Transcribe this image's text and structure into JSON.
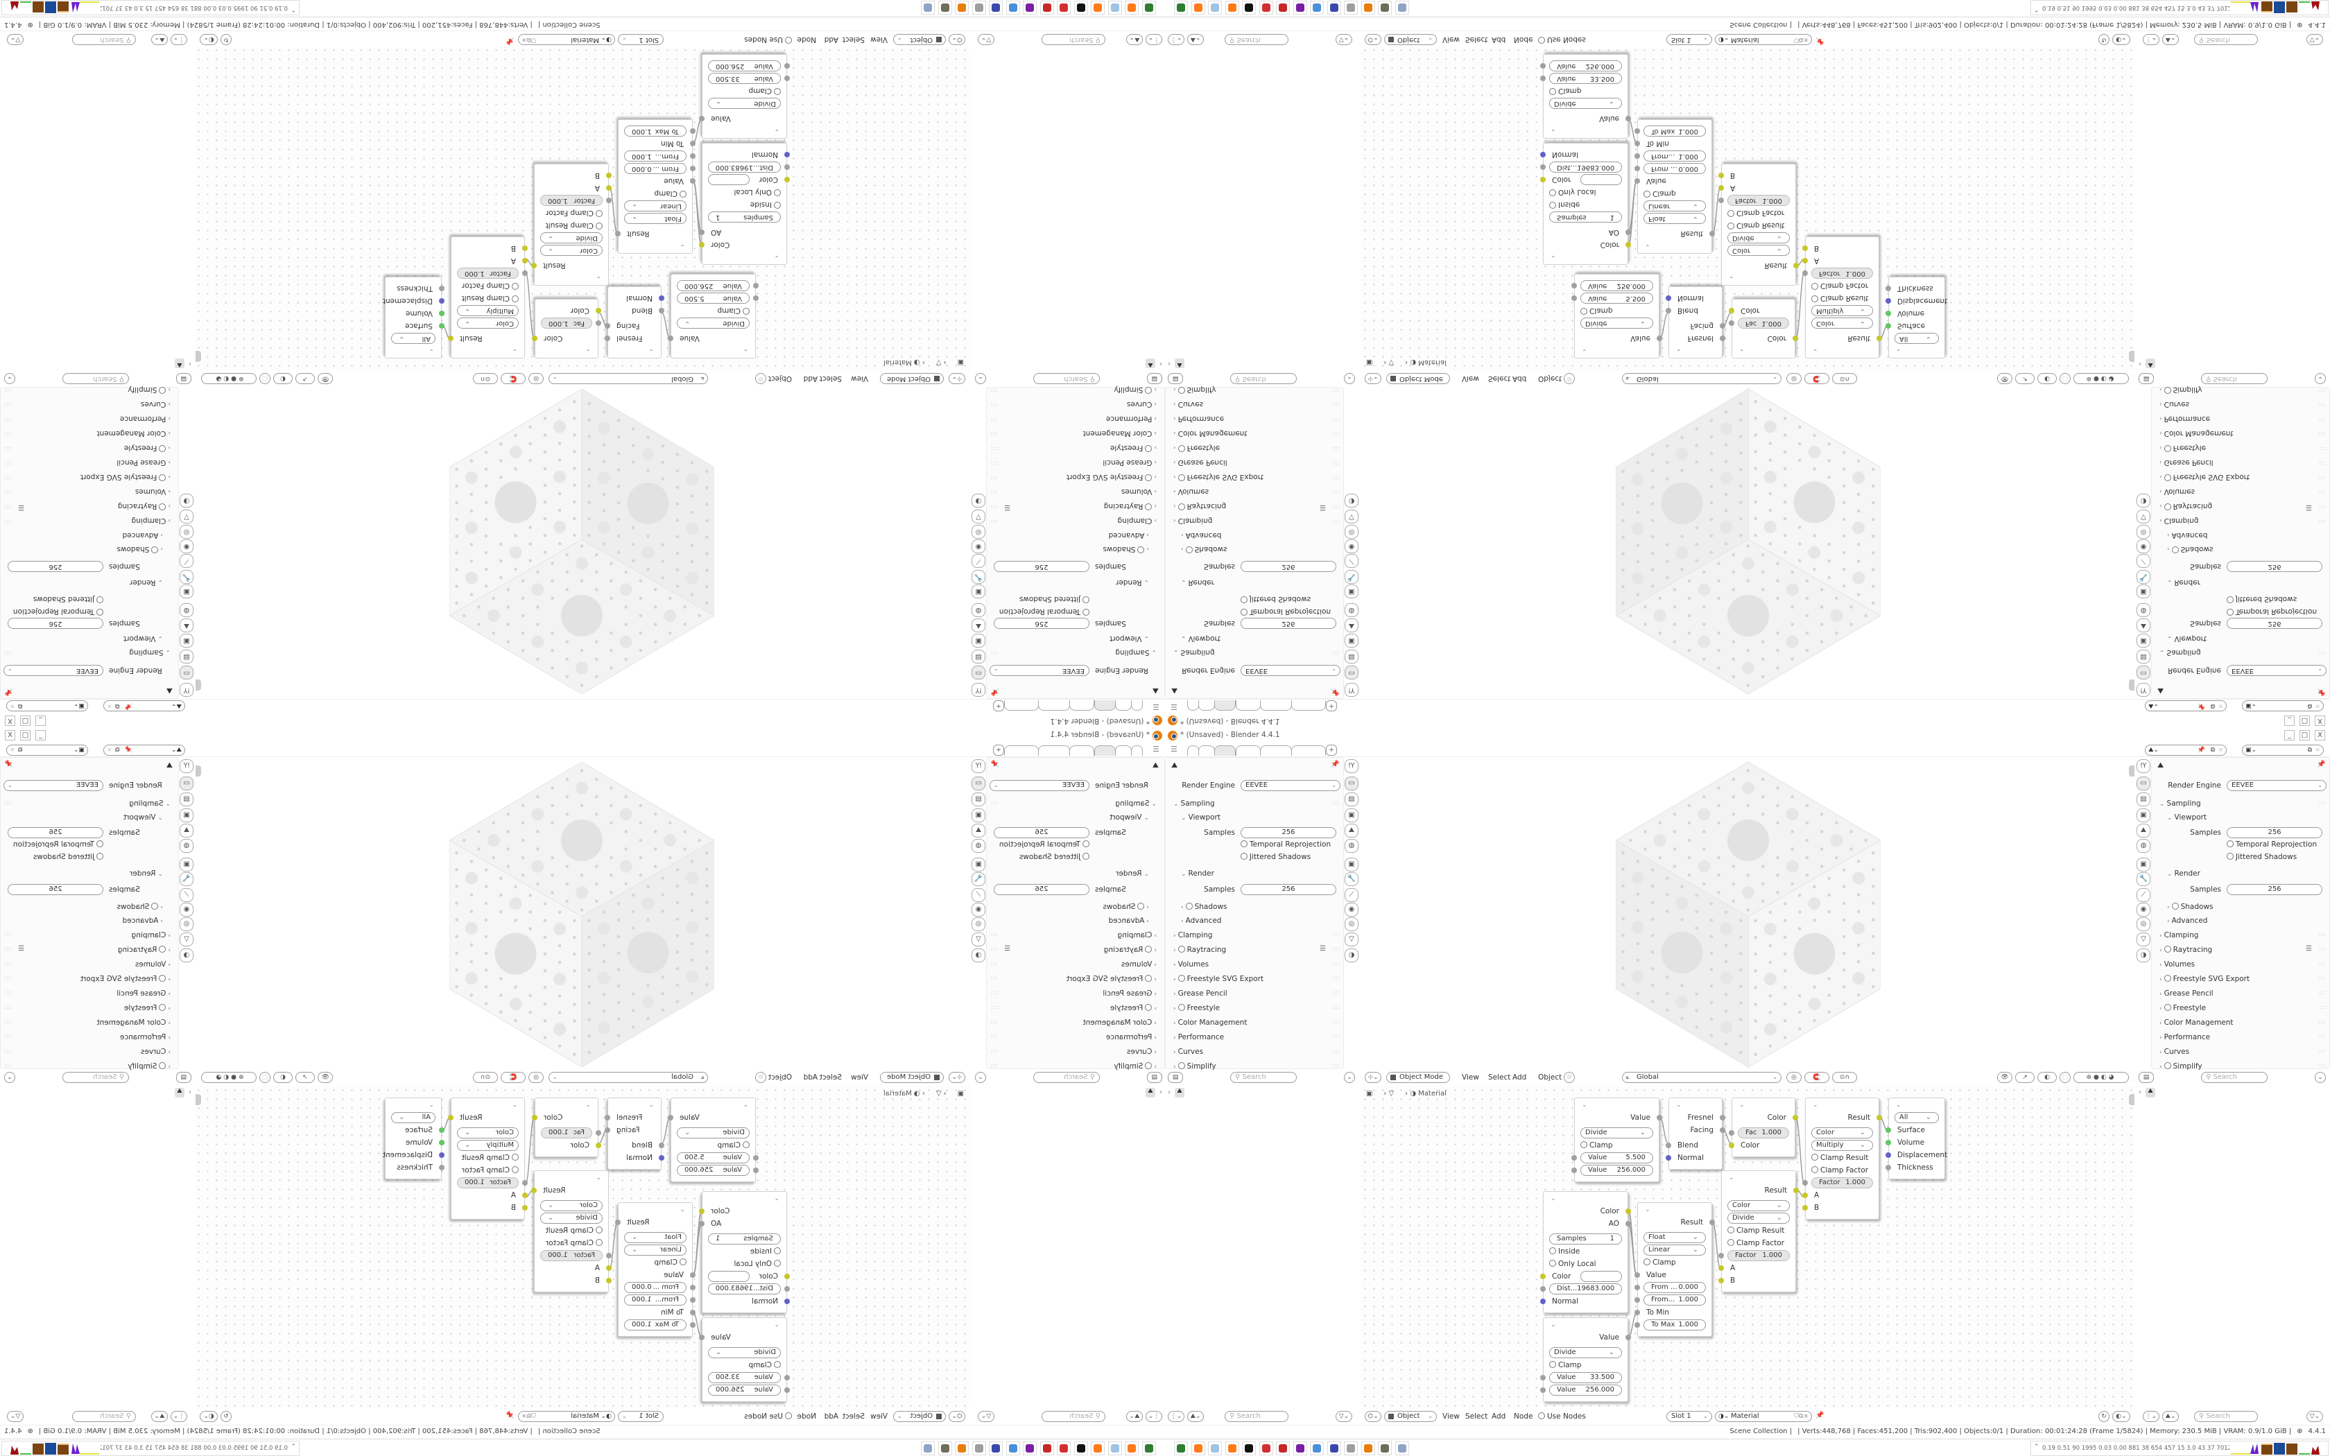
{
  "window": {
    "title": "* (Unsaved) - Blender 4.4.1",
    "controls": [
      "_",
      "□",
      "X"
    ]
  },
  "search_placeholder": "Search",
  "properties": {
    "render_engine_label": "Render Engine",
    "render_engine_value": "EEVEE",
    "sampling": "Sampling",
    "viewport": "Viewport",
    "samples_label": "Samples",
    "viewport_samples": "256",
    "temporal_reprojection": "Temporal Reprojection",
    "jittered_shadows": "Jittered Shadows",
    "render": "Render",
    "render_samples": "256",
    "shadows": "Shadows",
    "advanced": "Advanced",
    "clamping": "Clamping",
    "raytracing": "Raytracing",
    "volumes": "Volumes",
    "freestyle_svg": "Freestyle SVG Export",
    "grease_pencil": "Grease Pencil",
    "freestyle": "Freestyle",
    "color_management": "Color Management",
    "performance": "Performance",
    "curves": "Curves",
    "simplify": "Simplify",
    "tabs": [
      "tool",
      "render",
      "output",
      "view-layer",
      "scene",
      "world",
      "object",
      "modifiers",
      "particles",
      "physics",
      "constraints",
      "data",
      "material"
    ]
  },
  "viewport_header": {
    "mode": "Object Mode",
    "menus": [
      "View",
      "Select",
      "Add",
      "Object"
    ],
    "orientation": "Global"
  },
  "node_editor": {
    "breadcrumb": "Material",
    "nodes": [
      {
        "id": "math_a",
        "rows": [
          {
            "t": "out",
            "label": "Value",
            "s": "float"
          },
          {
            "t": "dd",
            "label": "Divide"
          },
          {
            "t": "cb",
            "label": "Clamp"
          },
          {
            "t": "field",
            "label": "Value",
            "value": "5.500",
            "s": "float"
          },
          {
            "t": "field",
            "label": "Value",
            "value": "256.000",
            "s": "float"
          }
        ]
      },
      {
        "id": "layer_weight",
        "rows": [
          {
            "t": "out",
            "label": "Fresnel",
            "s": "float"
          },
          {
            "t": "out",
            "label": "Facing",
            "s": "float"
          },
          {
            "t": "in",
            "label": "Blend",
            "s": "float"
          },
          {
            "t": "in",
            "label": "Normal",
            "s": "vector"
          }
        ]
      },
      {
        "id": "mix_fac",
        "rows": [
          {
            "t": "out",
            "label": "Color",
            "s": "color"
          },
          {
            "t": "gfield",
            "label": "Fac",
            "value": "1.000",
            "s": "float"
          },
          {
            "t": "in",
            "label": "Color",
            "s": "color"
          }
        ]
      },
      {
        "id": "mix_multiply",
        "rows": [
          {
            "t": "out",
            "label": "Result",
            "s": "color"
          },
          {
            "t": "dd",
            "label": "Color"
          },
          {
            "t": "dd",
            "label": "Multiply"
          },
          {
            "t": "cb",
            "label": "Clamp Result"
          },
          {
            "t": "cb",
            "label": "Clamp Factor"
          },
          {
            "t": "gfield",
            "label": "Factor",
            "value": "1.000",
            "s": "float"
          },
          {
            "t": "in",
            "label": "A",
            "s": "color"
          },
          {
            "t": "in",
            "label": "B",
            "s": "color"
          }
        ]
      },
      {
        "id": "material_output",
        "rows": [
          {
            "t": "dd",
            "label": "All"
          },
          {
            "t": "in",
            "label": "Surface",
            "s": "shader"
          },
          {
            "t": "in",
            "label": "Volume",
            "s": "shader"
          },
          {
            "t": "in",
            "label": "Displacement",
            "s": "vector"
          },
          {
            "t": "in",
            "label": "Thickness",
            "s": "float"
          }
        ]
      },
      {
        "id": "mix_divide",
        "rows": [
          {
            "t": "out",
            "label": "Result",
            "s": "color"
          },
          {
            "t": "dd",
            "label": "Color"
          },
          {
            "t": "dd",
            "label": "Divide"
          },
          {
            "t": "cb",
            "label": "Clamp Result"
          },
          {
            "t": "cb",
            "label": "Clamp Factor"
          },
          {
            "t": "gfield",
            "label": "Factor",
            "value": "1.000",
            "s": "float"
          },
          {
            "t": "in",
            "label": "A",
            "s": "color"
          },
          {
            "t": "in",
            "label": "B",
            "s": "color"
          }
        ]
      },
      {
        "id": "map_range",
        "rows": [
          {
            "t": "out",
            "label": "Result",
            "s": "float"
          },
          {
            "t": "dd",
            "label": "Float"
          },
          {
            "t": "dd",
            "label": "Linear"
          },
          {
            "t": "cb",
            "label": "Clamp"
          },
          {
            "t": "in",
            "label": "Value",
            "s": "float"
          },
          {
            "t": "field",
            "label": "From ...",
            "value": "0.000",
            "s": "float"
          },
          {
            "t": "field",
            "label": "From...",
            "value": "1.000",
            "s": "float"
          },
          {
            "t": "in",
            "label": "To Min",
            "s": "float"
          },
          {
            "t": "field",
            "label": "To Max",
            "value": "1.000",
            "s": "float"
          }
        ]
      },
      {
        "id": "ambient_occlusion",
        "rows": [
          {
            "t": "out",
            "label": "Color",
            "s": "color"
          },
          {
            "t": "out",
            "label": "AO",
            "s": "float"
          },
          {
            "t": "field",
            "label": "Samples",
            "value": "1"
          },
          {
            "t": "cb",
            "label": "Inside"
          },
          {
            "t": "cb",
            "label": "Only Local"
          },
          {
            "t": "color",
            "label": "Color",
            "s": "color"
          },
          {
            "t": "field",
            "label": "Dist...",
            "value": "19683.000",
            "s": "float"
          },
          {
            "t": "in",
            "label": "Normal",
            "s": "vector"
          }
        ]
      },
      {
        "id": "math_b",
        "rows": [
          {
            "t": "out",
            "label": "Value",
            "s": "float"
          },
          {
            "t": "dd",
            "label": "Divide"
          },
          {
            "t": "cb",
            "label": "Clamp"
          },
          {
            "t": "field",
            "label": "Value",
            "value": "33.500",
            "s": "float"
          },
          {
            "t": "field",
            "label": "Value",
            "value": "256.000",
            "s": "float"
          }
        ]
      }
    ]
  },
  "node_header": {
    "object": "Object",
    "menus": [
      "View",
      "Select",
      "Add",
      "Node"
    ],
    "use_nodes": "Use Nodes",
    "slot": "Slot 1",
    "material": "Material"
  },
  "status_bar": {
    "collection": "Scene Collection |",
    "stats": "| Verts:448,768 | Faces:451,200 | Tris:902,400 | Objects:0/1 | Duration: 00:01:24:28 (Frame 1/5824) | Memory: 230.5 MiB | VRAM: 0.9/1.0 GiB |",
    "version": "4.4.1"
  },
  "taskbar": {
    "apps": [
      "terminal",
      "firefox",
      "text-editor",
      "firefox",
      "inkscape",
      "settings-red",
      "settings-red-2",
      "chat",
      "system-monitor",
      "save-64",
      "wrench",
      "blender",
      "gimp",
      "document-viewer"
    ],
    "tray_text": "0.19 0.51  90  1995 0.03 0.00  881  38  654  457  15  3.0  43  37  7012121"
  },
  "colors": {
    "socket_float": "#a1a1a1",
    "socket_color": "#c7c729",
    "socket_vector": "#6363c7",
    "socket_shader": "#63c763",
    "blender_orange": "#e87d0d",
    "accent_blue": "#265787"
  }
}
